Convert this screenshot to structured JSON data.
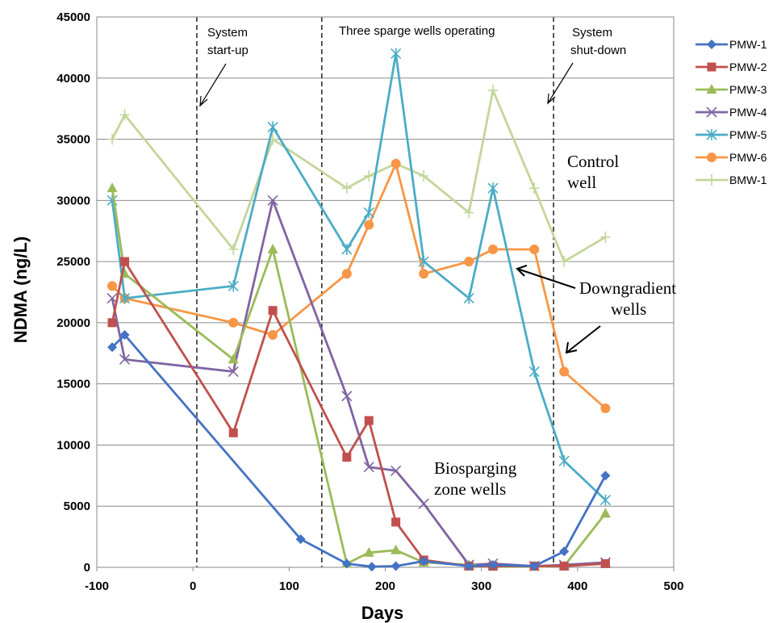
{
  "chart_data": {
    "type": "line",
    "title": "",
    "xlabel": "Days",
    "ylabel": "NDMA (ng/L)",
    "xlim": [
      -100,
      500
    ],
    "ylim": [
      0,
      45000
    ],
    "x_ticks": [
      -100,
      0,
      100,
      200,
      300,
      400,
      500
    ],
    "y_ticks": [
      0,
      5000,
      10000,
      15000,
      20000,
      25000,
      30000,
      35000,
      40000,
      45000
    ],
    "grid": "horizontal",
    "legend_position": "right",
    "series": [
      {
        "name": "PMW-1",
        "color": "#4472c4",
        "marker": "diamond",
        "points": [
          [
            -84,
            18000
          ],
          [
            -71,
            19000
          ],
          [
            112,
            2300
          ],
          [
            160,
            300
          ],
          [
            186,
            50
          ],
          [
            211,
            100
          ],
          [
            240,
            500
          ],
          [
            287,
            100
          ],
          [
            312,
            200
          ],
          [
            355,
            100
          ],
          [
            386,
            1300
          ],
          [
            429,
            7500
          ]
        ]
      },
      {
        "name": "PMW-2",
        "color": "#c0504d",
        "marker": "square",
        "points": [
          [
            -84,
            20000
          ],
          [
            -71,
            25000
          ],
          [
            42,
            11000
          ],
          [
            83,
            21000
          ],
          [
            160,
            9000
          ],
          [
            183,
            12000
          ],
          [
            211,
            3700
          ],
          [
            240,
            600
          ],
          [
            287,
            100
          ],
          [
            312,
            100
          ],
          [
            355,
            100
          ],
          [
            386,
            100
          ],
          [
            429,
            300
          ]
        ]
      },
      {
        "name": "PMW-3",
        "color": "#9bbb59",
        "marker": "triangle",
        "points": [
          [
            -84,
            31000
          ],
          [
            -71,
            24000
          ],
          [
            42,
            17000
          ],
          [
            83,
            26000
          ],
          [
            160,
            300
          ],
          [
            183,
            1200
          ],
          [
            211,
            1400
          ],
          [
            240,
            400
          ],
          [
            287,
            200
          ],
          [
            312,
            50
          ],
          [
            355,
            50
          ],
          [
            386,
            100
          ],
          [
            429,
            4400
          ]
        ]
      },
      {
        "name": "PMW-4",
        "color": "#8064a2",
        "marker": "x",
        "points": [
          [
            -84,
            22000
          ],
          [
            -71,
            17000
          ],
          [
            42,
            16000
          ],
          [
            83,
            30000
          ],
          [
            160,
            14000
          ],
          [
            183,
            8200
          ],
          [
            211,
            7900
          ],
          [
            240,
            5200
          ],
          [
            287,
            200
          ],
          [
            312,
            300
          ],
          [
            355,
            100
          ],
          [
            386,
            200
          ],
          [
            429,
            400
          ]
        ]
      },
      {
        "name": "PMW-5",
        "color": "#4bacc6",
        "marker": "star",
        "points": [
          [
            -84,
            30000
          ],
          [
            -71,
            22000
          ],
          [
            42,
            23000
          ],
          [
            83,
            36000
          ],
          [
            160,
            26000
          ],
          [
            183,
            29000
          ],
          [
            211,
            42000
          ],
          [
            240,
            25000
          ],
          [
            287,
            22000
          ],
          [
            312,
            31000
          ],
          [
            355,
            16000
          ],
          [
            386,
            8700
          ],
          [
            429,
            5500
          ]
        ]
      },
      {
        "name": "PMW-6",
        "color": "#f79646",
        "marker": "circle",
        "points": [
          [
            -84,
            23000
          ],
          [
            -71,
            22000
          ],
          [
            42,
            20000
          ],
          [
            83,
            19000
          ],
          [
            160,
            24000
          ],
          [
            183,
            28000
          ],
          [
            211,
            33000
          ],
          [
            240,
            24000
          ],
          [
            287,
            25000
          ],
          [
            312,
            26000
          ],
          [
            355,
            26000
          ],
          [
            386,
            16000
          ],
          [
            429,
            13000
          ]
        ]
      },
      {
        "name": "BMW-1",
        "color": "#c3d69b",
        "marker": "plus",
        "points": [
          [
            -84,
            35000
          ],
          [
            -71,
            37000
          ],
          [
            42,
            26000
          ],
          [
            83,
            35000
          ],
          [
            160,
            31000
          ],
          [
            183,
            32000
          ],
          [
            211,
            33000
          ],
          [
            240,
            32000
          ],
          [
            287,
            29000
          ],
          [
            312,
            39000
          ],
          [
            355,
            31000
          ],
          [
            386,
            25000
          ],
          [
            429,
            27000
          ]
        ]
      }
    ],
    "vertical_lines": [
      4,
      134,
      375
    ],
    "annotations": {
      "startup_line1": "System",
      "startup_line2": "start-up",
      "operating": "Three sparge wells operating",
      "shutdown_line1": "System",
      "shutdown_line2": "shut-down",
      "control_line1": "Control",
      "control_line2": "well",
      "downgradient_line1": "Downgradient",
      "downgradient_line2": "wells",
      "biosparging_line1": "Biosparging",
      "biosparging_line2": "zone wells"
    }
  }
}
